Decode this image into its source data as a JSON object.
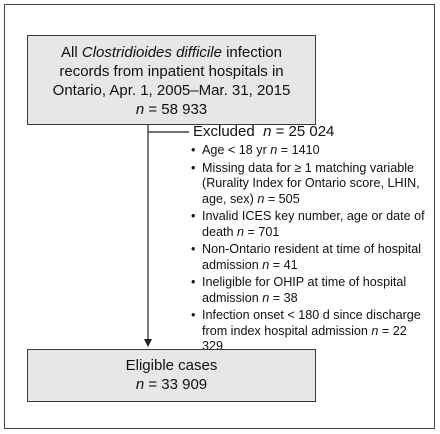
{
  "top_box": {
    "line1_prefix": "All ",
    "line1_organism": "Clostridioides difficile",
    "line1_suffix": " infection",
    "line2": "records from inpatient hospitals in",
    "line3": "Ontario, Apr. 1, 2005–Mar. 31, 2015",
    "n_label": "n",
    "n_value": " = 58 933"
  },
  "excluded": {
    "label": "Excluded",
    "n_label": "n",
    "n_value": " = 25 024",
    "items": [
      {
        "text": "Age < 18 yr ",
        "n_label": "n",
        "n_value": " = 1410"
      },
      {
        "text": "Missing data for ≥ 1 matching variable (Rurality Index for Ontario score, LHIN, age, sex) ",
        "n_label": "n",
        "n_value": " = 505"
      },
      {
        "text": "Invalid ICES key number, age or date of death ",
        "n_label": "n",
        "n_value": " = 701"
      },
      {
        "text": "Non-Ontario resident at time of hospital admission ",
        "n_label": "n",
        "n_value": " = 41"
      },
      {
        "text": "Ineligible for OHIP at time of hospital admission ",
        "n_label": "n",
        "n_value": " = 38"
      },
      {
        "text": "Infection onset < 180 d since discharge from index hospital admission ",
        "n_label": "n",
        "n_value": " = 22 329"
      }
    ]
  },
  "bottom_box": {
    "line1": "Eligible cases",
    "n_label": "n",
    "n_value": " = 33 909"
  },
  "colors": {
    "box_fill": "#e7e7e7",
    "border": "#3a3a3a"
  }
}
